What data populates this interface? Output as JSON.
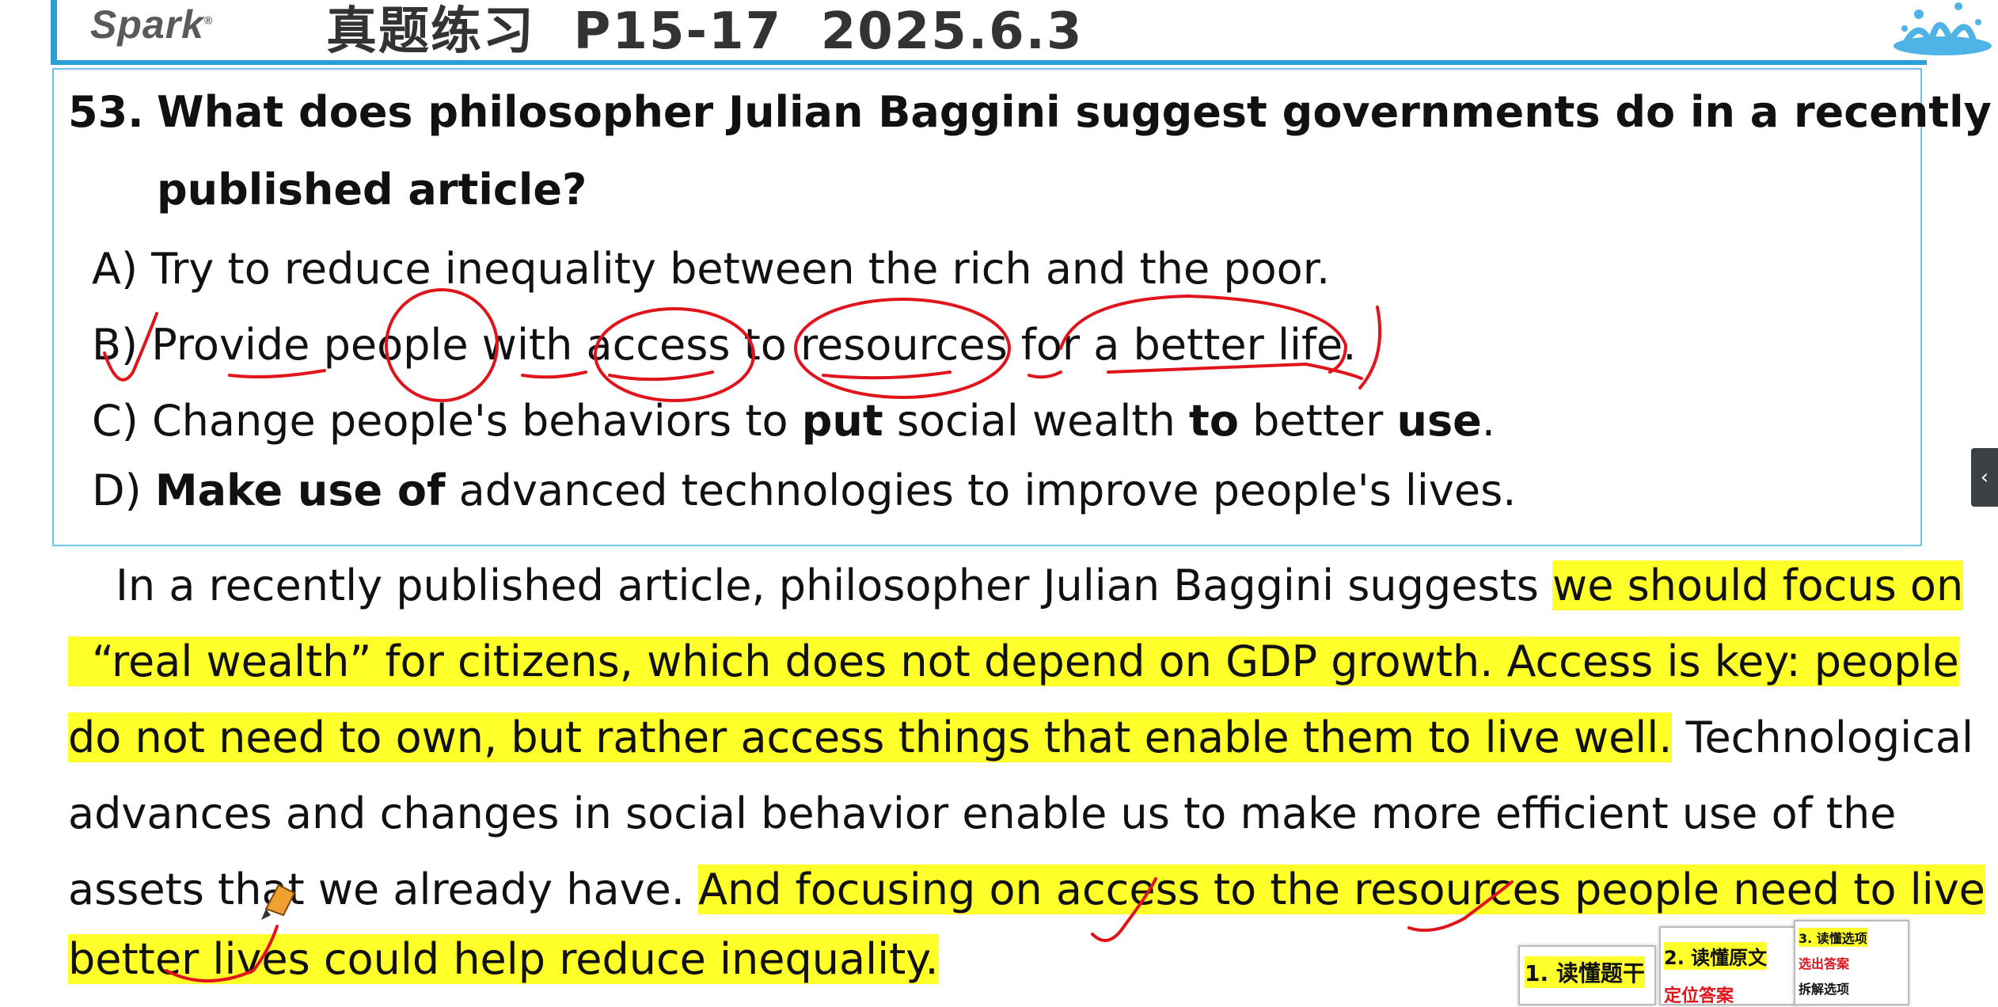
{
  "header": {
    "logo": "Spark",
    "logo_mark": "®",
    "title": "真题练习  P15-17  2025.6.3"
  },
  "question": {
    "number": "53.",
    "line1": "What does philosopher Julian Baggini suggest governments do in a recently",
    "line2": "published article?",
    "options": {
      "a": "A) Try to reduce inequality between the rich and the poor.",
      "b": "B) Provide people with access to resources for a better life.",
      "c_1": "C) Change people's behaviors to ",
      "c_b1": "put",
      "c_2": " social wealth ",
      "c_b2": "to",
      "c_3": " better ",
      "c_b3": "use",
      "c_4": ".",
      "d_1": "D) ",
      "d_b": "Make use of",
      "d_2": " advanced technologies to improve people's lives."
    }
  },
  "passage": {
    "l1_plain": "In a recently published article, philosopher Julian Baggini suggests ",
    "l1_hl": "we should focus on",
    "l2_hl": "“real wealth”  for citizens, which does not depend on GDP growth. Access is key: people",
    "l3_hl": "do not need to own, but rather access things that enable them to live well.",
    "l3_plain": " Technological",
    "l4_plain": "advances and changes in social behavior enable us to make more efficient use of the",
    "l5_plain": "assets that we already have. ",
    "l5_hl": "And focusing on access to the resources people need to live",
    "l6_hl": "better lives could help reduce inequality."
  },
  "thumbnails": {
    "t1": "1. 读懂题干",
    "t2_a": "2. 读懂原文",
    "t2_b": "定位答案",
    "t3_a": "3. 读懂选项",
    "t3_b": "选出答案",
    "t3_c": "拆解选项"
  },
  "side_tab": {
    "icon": "chevron-left-icon",
    "glyph": "‹"
  },
  "colors": {
    "accent_blue": "#2a9fd8",
    "highlight": "#ffff2a",
    "ink_red": "#e0141b"
  }
}
